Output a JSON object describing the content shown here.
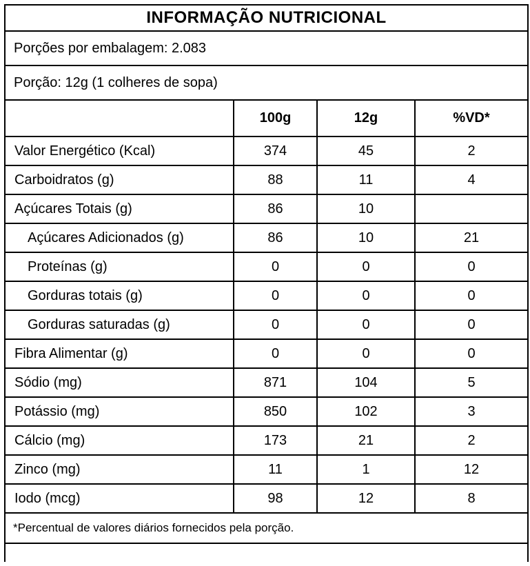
{
  "label": {
    "title": "INFORMAÇÃO NUTRICIONAL",
    "servings_line": "Porções por embalagem: 2.083",
    "portion_line": "Porção: 12g (1 colheres de sopa)",
    "columns": {
      "label": "",
      "per100g": "100g",
      "per_portion": "12g",
      "daily_value": "%VD*"
    },
    "rows": [
      {
        "label": "Valor Energético (Kcal)",
        "indent": false,
        "per100g": "374",
        "per_portion": "45",
        "daily_value": "2"
      },
      {
        "label": "Carboidratos (g)",
        "indent": false,
        "per100g": "88",
        "per_portion": "11",
        "daily_value": "4"
      },
      {
        "label": "Açúcares Totais (g)",
        "indent": false,
        "per100g": "86",
        "per_portion": "10",
        "daily_value": ""
      },
      {
        "label": "Açúcares Adicionados (g)",
        "indent": true,
        "per100g": "86",
        "per_portion": "10",
        "daily_value": "21"
      },
      {
        "label": "Proteínas (g)",
        "indent": true,
        "per100g": "0",
        "per_portion": "0",
        "daily_value": "0"
      },
      {
        "label": "Gorduras totais (g)",
        "indent": true,
        "per100g": "0",
        "per_portion": "0",
        "daily_value": "0"
      },
      {
        "label": "Gorduras saturadas (g)",
        "indent": true,
        "per100g": "0",
        "per_portion": "0",
        "daily_value": "0"
      },
      {
        "label": "Fibra Alimentar (g)",
        "indent": false,
        "per100g": "0",
        "per_portion": "0",
        "daily_value": "0"
      },
      {
        "label": "Sódio (mg)",
        "indent": false,
        "per100g": "871",
        "per_portion": "104",
        "daily_value": "5"
      },
      {
        "label": "Potássio (mg)",
        "indent": false,
        "per100g": "850",
        "per_portion": "102",
        "daily_value": "3"
      },
      {
        "label": "Cálcio (mg)",
        "indent": false,
        "per100g": "173",
        "per_portion": "21",
        "daily_value": "2"
      },
      {
        "label": "Zinco (mg)",
        "indent": false,
        "per100g": "11",
        "per_portion": "1",
        "daily_value": "12"
      },
      {
        "label": "Iodo (mcg)",
        "indent": false,
        "per100g": "98",
        "per_portion": "12",
        "daily_value": "8"
      }
    ],
    "footnote": "*Percentual de valores diários fornecidos pela porção.",
    "colors": {
      "border": "#000000",
      "text": "#000000",
      "background": "#ffffff"
    }
  }
}
